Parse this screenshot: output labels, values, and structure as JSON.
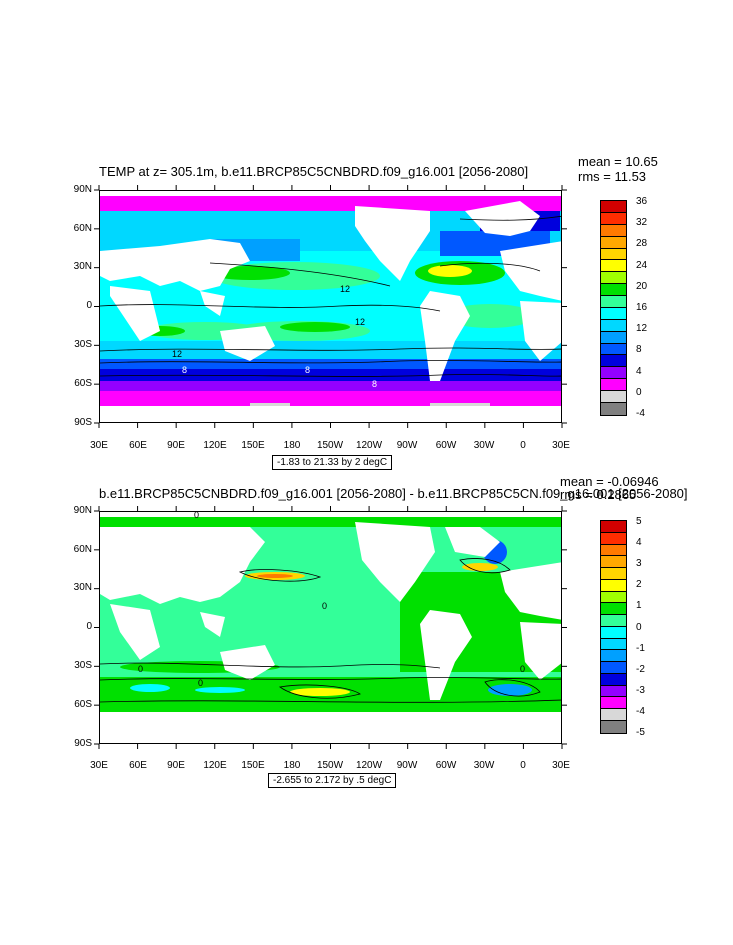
{
  "top_panel": {
    "title": "TEMP at z= 305.1m, b.e11.BRCP85C5CNBDRD.f09_g16.001 [2056-2080]",
    "mean": "mean = 10.65",
    "rms": "rms = 11.53",
    "contour_info": "-1.83 to 21.33 by 2 degC",
    "contour_labels": [
      "12",
      "12",
      "12",
      "8",
      "8",
      "8"
    ],
    "colorbar_labels": [
      "36",
      "32",
      "28",
      "24",
      "20",
      "16",
      "12",
      "8",
      "4",
      "0",
      "-4"
    ],
    "colorbar_colors": [
      "#d10000",
      "#ff2d00",
      "#ff7a00",
      "#ffa800",
      "#ffd500",
      "#ffff00",
      "#a0ff00",
      "#00e000",
      "#33ff99",
      "#00ffff",
      "#00d8ff",
      "#00a0ff",
      "#0058ff",
      "#0000dd",
      "#9300ff",
      "#ff00ff",
      "#d8d8d8",
      "#808080"
    ]
  },
  "bottom_panel": {
    "title": "b.e11.BRCP85C5CNBDRD.f09_g16.001 [2056-2080] - b.e11.BRCP85C5CN.f09_g16.001 [2056-2080]",
    "mean": "mean = -0.06946",
    "rms": "rms = 0.2865",
    "contour_info": "-2.655 to 2.172 by .5 degC",
    "contour_labels": [
      "0",
      "0",
      "0",
      "0",
      "0"
    ],
    "colorbar_labels": [
      "5",
      "4",
      "3",
      "2",
      "1",
      "0",
      "-1",
      "-2",
      "-3",
      "-4",
      "-5"
    ],
    "colorbar_colors": [
      "#d10000",
      "#ff2d00",
      "#ff7a00",
      "#ffa800",
      "#ffd500",
      "#ffff00",
      "#a0ff00",
      "#00e000",
      "#33ff99",
      "#00ffff",
      "#00d8ff",
      "#00a0ff",
      "#0058ff",
      "#0000dd",
      "#9300ff",
      "#ff00ff",
      "#d8d8d8",
      "#808080"
    ]
  },
  "lat_labels": [
    "90N",
    "60N",
    "30N",
    "0",
    "30S",
    "60S",
    "90S"
  ],
  "lon_labels": [
    "30E",
    "60E",
    "90E",
    "120E",
    "150E",
    "180",
    "150W",
    "120W",
    "90W",
    "60W",
    "30W",
    "0",
    "30E"
  ]
}
